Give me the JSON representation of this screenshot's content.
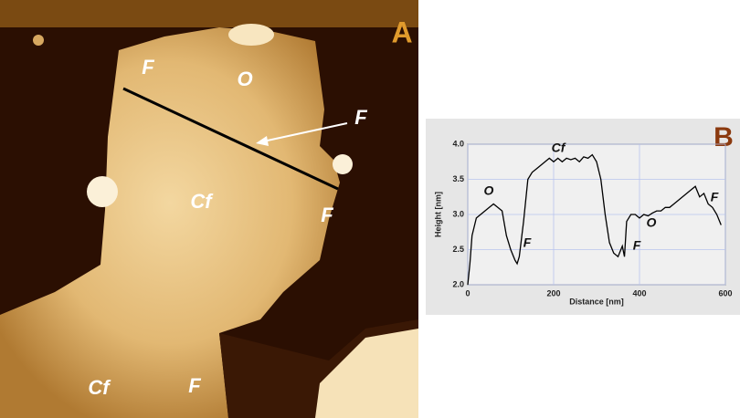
{
  "image": {
    "panel_label": "A",
    "labels": [
      "F",
      "O",
      "F",
      "Cf",
      "F",
      "Cf",
      "F"
    ]
  },
  "chart_data": {
    "type": "line",
    "panel_label": "B",
    "x_label": "Distance [nm]",
    "y_label": "Height [nm]",
    "x": [
      0,
      5,
      10,
      20,
      30,
      40,
      50,
      60,
      70,
      80,
      90,
      100,
      110,
      115,
      120,
      130,
      140,
      150,
      160,
      170,
      180,
      190,
      200,
      210,
      220,
      230,
      240,
      250,
      260,
      270,
      280,
      290,
      300,
      310,
      320,
      330,
      340,
      350,
      360,
      365,
      370,
      380,
      390,
      400,
      410,
      420,
      430,
      440,
      450,
      460,
      470,
      480,
      490,
      500,
      510,
      520,
      530,
      540,
      550,
      560,
      570,
      580,
      590
    ],
    "series": [
      {
        "color": "#000000",
        "values": [
          2.0,
          2.3,
          2.7,
          2.95,
          3.0,
          3.05,
          3.1,
          3.15,
          3.1,
          3.05,
          2.7,
          2.5,
          2.35,
          2.3,
          2.4,
          2.9,
          3.5,
          3.6,
          3.65,
          3.7,
          3.75,
          3.8,
          3.75,
          3.8,
          3.75,
          3.8,
          3.78,
          3.8,
          3.75,
          3.82,
          3.8,
          3.85,
          3.75,
          3.5,
          3.0,
          2.6,
          2.45,
          2.4,
          2.55,
          2.4,
          2.9,
          3.0,
          3.0,
          2.95,
          3.0,
          2.98,
          3.02,
          3.05,
          3.05,
          3.1,
          3.1,
          3.15,
          3.2,
          3.25,
          3.3,
          3.35,
          3.4,
          3.25,
          3.3,
          3.15,
          3.1,
          3.0,
          2.85
        ]
      }
    ],
    "xlim": [
      0,
      600
    ],
    "xticks": [
      0,
      200,
      400,
      600
    ],
    "ylim": [
      2.0,
      4.0
    ],
    "yticks": [
      {
        "value": 2.0,
        "label": "2.0"
      },
      {
        "value": 2.5,
        "label": "2.5"
      },
      {
        "value": 3.0,
        "label": "3.0"
      },
      {
        "value": 3.5,
        "label": "3.5"
      },
      {
        "value": 4.0,
        "label": "4.0"
      }
    ],
    "grid": true,
    "annotations": [
      "O",
      "Cf",
      "F",
      "F",
      "O",
      "F"
    ]
  }
}
